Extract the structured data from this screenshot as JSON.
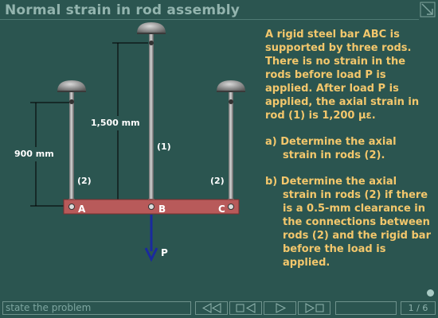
{
  "title": "Normal strain in rod assembly",
  "problem": {
    "intro": "A rigid steel bar ABC is supported by three rods. There is no strain in the rods before load P is applied.  After load P is applied, the axial strain in rod (1) is 1,200 με.",
    "question_a": "a) Determine the axial strain in rods (2).",
    "question_b": "b) Determine the axial strain in rods (2) if there is a 0.5-mm clearance in the connections between rods (2) and the rigid bar before the load is applied."
  },
  "diagram": {
    "dim_900": "900 mm",
    "dim_1500": "1,500 mm",
    "rod1_label": "(1)",
    "rod2_left_label": "(2)",
    "rod2_right_label": "(2)",
    "point_a": "A",
    "point_b": "B",
    "point_c": "C",
    "load_label": "P",
    "colors": {
      "bar": "#b85a5a",
      "rod": "#9a9a9a",
      "load_arrow": "#1a2a9e",
      "text_accent": "#f3c76c"
    }
  },
  "nav": {
    "status_text": "state the problem",
    "buttons": [
      "rewind-icon",
      "stop-back-icon",
      "play-icon",
      "step-forward-icon"
    ],
    "page_current": "1",
    "page_total": "6"
  }
}
